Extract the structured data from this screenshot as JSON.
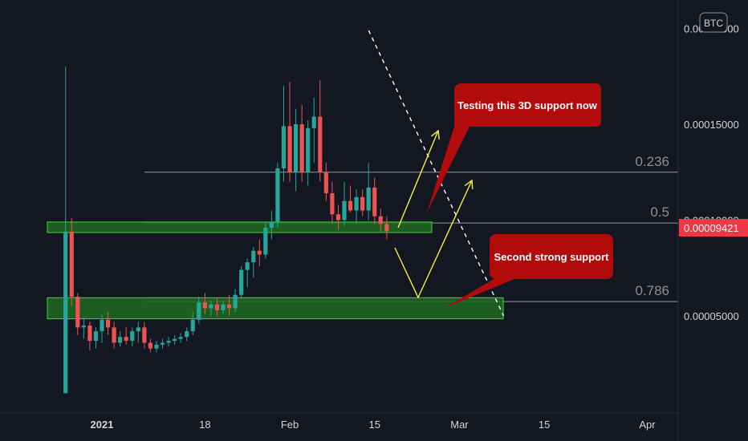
{
  "colors": {
    "background": "#131722",
    "up": "#26a69a",
    "down": "#ef5350",
    "zone_fill": "#1e6b1e",
    "zone_stroke": "#3fd33f",
    "callout": "#b20b0b",
    "arrow": "#f5f23a",
    "trendline": "#ffffff",
    "fib_line": "#9598a1",
    "price_tag": "#f23645",
    "axis_text": "#d1d4dc"
  },
  "badge": {
    "label": "BTC"
  },
  "current_price": {
    "label": "0.00009421",
    "value": 9.421e-05
  },
  "callouts": [
    {
      "text": "Testing this 3D support now"
    },
    {
      "text": "Second strong support"
    }
  ],
  "chart_data": {
    "type": "candlestick",
    "symbol_badge": "BTC",
    "y_axis": {
      "ticks": [
        {
          "value": 5e-05,
          "label": "0.00005000"
        },
        {
          "value": 0.0001,
          "label": "0.00010000"
        },
        {
          "value": 0.00015,
          "label": "0.00015000"
        },
        {
          "value": 0.0002,
          "label": "0.00020000"
        }
      ],
      "range": [
        0.0,
        0.00021
      ]
    },
    "x_axis": {
      "ticks": [
        {
          "label": "2021",
          "day": 0
        },
        {
          "label": "18",
          "day": 17
        },
        {
          "label": "Feb",
          "day": 31
        },
        {
          "label": "15",
          "day": 45
        },
        {
          "label": "Mar",
          "day": 59
        },
        {
          "label": "15",
          "day": 73
        },
        {
          "label": "Apr",
          "day": 90
        }
      ]
    },
    "fib_levels": [
      {
        "label": "0.236",
        "value": 0.000125
      },
      {
        "label": "0.5",
        "value": 9.85e-05
      },
      {
        "label": "0.786",
        "value": 5.75e-05
      }
    ],
    "support_zones": [
      {
        "low": 9.35e-05,
        "high": 9.9e-05
      },
      {
        "low": 4.85e-05,
        "high": 5.95e-05
      }
    ],
    "candles": [
      {
        "day": -6,
        "o": 9.7e-06,
        "h": 0.00018,
        "l": 9.5e-06,
        "c": 9.4e-05
      },
      {
        "day": -5,
        "o": 9.4e-05,
        "h": 0.000101,
        "l": 5.5e-05,
        "c": 6e-05
      },
      {
        "day": -4,
        "o": 6e-05,
        "h": 6.2e-05,
        "l": 4e-05,
        "c": 4.4e-05
      },
      {
        "day": -3,
        "o": 4.4e-05,
        "h": 4.9e-05,
        "l": 3.8e-05,
        "c": 4.5e-05
      },
      {
        "day": -2,
        "o": 4.5e-05,
        "h": 4.7e-05,
        "l": 3.2e-05,
        "c": 3.7e-05
      },
      {
        "day": -1,
        "o": 3.7e-05,
        "h": 4.4e-05,
        "l": 3.3e-05,
        "c": 4.2e-05
      },
      {
        "day": 0,
        "o": 4.2e-05,
        "h": 5.1e-05,
        "l": 3.6e-05,
        "c": 4.8e-05
      },
      {
        "day": 1,
        "o": 4.8e-05,
        "h": 5.2e-05,
        "l": 4e-05,
        "c": 4.4e-05
      },
      {
        "day": 2,
        "o": 4.4e-05,
        "h": 4.7e-05,
        "l": 3.3e-05,
        "c": 3.6e-05
      },
      {
        "day": 3,
        "o": 3.6e-05,
        "h": 4.2e-05,
        "l": 3.4e-05,
        "c": 3.9e-05
      },
      {
        "day": 4,
        "o": 3.9e-05,
        "h": 4.4e-05,
        "l": 3.5e-05,
        "c": 3.7e-05
      },
      {
        "day": 5,
        "o": 3.7e-05,
        "h": 4.4e-05,
        "l": 3.4e-05,
        "c": 4.2e-05
      },
      {
        "day": 6,
        "o": 4.2e-05,
        "h": 4.7e-05,
        "l": 3.6e-05,
        "c": 4.4e-05
      },
      {
        "day": 7,
        "o": 4.4e-05,
        "h": 4.7e-05,
        "l": 3.3e-05,
        "c": 3.6e-05
      },
      {
        "day": 8,
        "o": 3.6e-05,
        "h": 3.8e-05,
        "l": 3.1e-05,
        "c": 3.3e-05
      },
      {
        "day": 9,
        "o": 3.3e-05,
        "h": 3.7e-05,
        "l": 3.1e-05,
        "c": 3.5e-05
      },
      {
        "day": 10,
        "o": 3.5e-05,
        "h": 3.8e-05,
        "l": 3.3e-05,
        "c": 3.6e-05
      },
      {
        "day": 11,
        "o": 3.6e-05,
        "h": 3.9e-05,
        "l": 3.4e-05,
        "c": 3.7e-05
      },
      {
        "day": 12,
        "o": 3.7e-05,
        "h": 4e-05,
        "l": 3.5e-05,
        "c": 3.8e-05
      },
      {
        "day": 13,
        "o": 3.8e-05,
        "h": 4.1e-05,
        "l": 3.6e-05,
        "c": 3.9e-05
      },
      {
        "day": 14,
        "o": 3.9e-05,
        "h": 4.4e-05,
        "l": 3.7e-05,
        "c": 4.2e-05
      },
      {
        "day": 15,
        "o": 4.2e-05,
        "h": 5.2e-05,
        "l": 4e-05,
        "c": 4.8e-05
      },
      {
        "day": 16,
        "o": 4.8e-05,
        "h": 6e-05,
        "l": 4.6e-05,
        "c": 5.7e-05
      },
      {
        "day": 17,
        "o": 5.7e-05,
        "h": 6.2e-05,
        "l": 5.1e-05,
        "c": 5.4e-05
      },
      {
        "day": 18,
        "o": 5.4e-05,
        "h": 5.8e-05,
        "l": 5e-05,
        "c": 5.6e-05
      },
      {
        "day": 19,
        "o": 5.6e-05,
        "h": 5.9e-05,
        "l": 5e-05,
        "c": 5.3e-05
      },
      {
        "day": 20,
        "o": 5.3e-05,
        "h": 5.8e-05,
        "l": 5.1e-05,
        "c": 5.6e-05
      },
      {
        "day": 21,
        "o": 5.6e-05,
        "h": 6.1e-05,
        "l": 5e-05,
        "c": 5.4e-05
      },
      {
        "day": 22,
        "o": 5.4e-05,
        "h": 6.4e-05,
        "l": 5.2e-05,
        "c": 6.1e-05
      },
      {
        "day": 23,
        "o": 6.1e-05,
        "h": 7.6e-05,
        "l": 5.9e-05,
        "c": 7.4e-05
      },
      {
        "day": 24,
        "o": 7.4e-05,
        "h": 8e-05,
        "l": 6.5e-05,
        "c": 7.8e-05
      },
      {
        "day": 25,
        "o": 7.8e-05,
        "h": 8.6e-05,
        "l": 7e-05,
        "c": 8.4e-05
      },
      {
        "day": 26,
        "o": 8.4e-05,
        "h": 9e-05,
        "l": 7.6e-05,
        "c": 8.2e-05
      },
      {
        "day": 27,
        "o": 8.2e-05,
        "h": 9.9e-05,
        "l": 8e-05,
        "c": 9.6e-05
      },
      {
        "day": 28,
        "o": 9.6e-05,
        "h": 0.000105,
        "l": 9e-05,
        "c": 9.9e-05
      },
      {
        "day": 29,
        "o": 9.9e-05,
        "h": 0.00013,
        "l": 9.6e-05,
        "c": 0.000127
      },
      {
        "day": 30,
        "o": 0.000127,
        "h": 0.00017,
        "l": 0.00012,
        "c": 0.000149
      },
      {
        "day": 31,
        "o": 0.000149,
        "h": 0.000172,
        "l": 0.00012,
        "c": 0.000125
      },
      {
        "day": 32,
        "o": 0.000125,
        "h": 0.000158,
        "l": 0.000115,
        "c": 0.00015
      },
      {
        "day": 33,
        "o": 0.00015,
        "h": 0.00016,
        "l": 0.00012,
        "c": 0.000125
      },
      {
        "day": 34,
        "o": 0.000125,
        "h": 0.000152,
        "l": 0.000118,
        "c": 0.000148
      },
      {
        "day": 35,
        "o": 0.000148,
        "h": 0.000164,
        "l": 0.00013,
        "c": 0.000154
      },
      {
        "day": 36,
        "o": 0.000154,
        "h": 0.000173,
        "l": 0.00012,
        "c": 0.000125
      },
      {
        "day": 37,
        "o": 0.000125,
        "h": 0.00013,
        "l": 0.00011,
        "c": 0.000114
      },
      {
        "day": 38,
        "o": 0.000114,
        "h": 0.00012,
        "l": 9.8e-05,
        "c": 0.000103
      },
      {
        "day": 39,
        "o": 0.000103,
        "h": 0.000108,
        "l": 9.5e-05,
        "c": 0.0001
      },
      {
        "day": 40,
        "o": 0.0001,
        "h": 0.00012,
        "l": 9.7e-05,
        "c": 0.00011
      },
      {
        "day": 41,
        "o": 0.00011,
        "h": 0.000118,
        "l": 0.000104,
        "c": 0.000105
      },
      {
        "day": 42,
        "o": 0.000105,
        "h": 0.000116,
        "l": 9.8e-05,
        "c": 0.000112
      },
      {
        "day": 43,
        "o": 0.000112,
        "h": 0.000116,
        "l": 0.000102,
        "c": 0.000105
      },
      {
        "day": 44,
        "o": 0.000105,
        "h": 0.00013,
        "l": 0.0001,
        "c": 0.000117
      },
      {
        "day": 45,
        "o": 0.000117,
        "h": 0.000122,
        "l": 9.8e-05,
        "c": 0.000102
      },
      {
        "day": 46,
        "o": 0.000102,
        "h": 0.000106,
        "l": 9.4e-05,
        "c": 9.8e-05
      },
      {
        "day": 47,
        "o": 9.8e-05,
        "h": 0.000102,
        "l": 9e-05,
        "c": 9.42e-05
      }
    ],
    "annotations": [
      {
        "type": "trendline-dashed",
        "from": {
          "day": 26,
          "price": 0.000199
        },
        "to": {
          "day": 61,
          "price": 5e-05
        }
      },
      {
        "type": "arrow",
        "from": {
          "day": 48,
          "price": 9.3e-05
        },
        "to": {
          "day": 53,
          "price": 0.000148
        }
      },
      {
        "type": "arrow",
        "from": {
          "day": 48,
          "price": 9.1e-05
        },
        "via": {
          "day": 52,
          "price": 6e-05
        },
        "to": {
          "day": 57,
          "price": 0.000119
        }
      }
    ]
  }
}
